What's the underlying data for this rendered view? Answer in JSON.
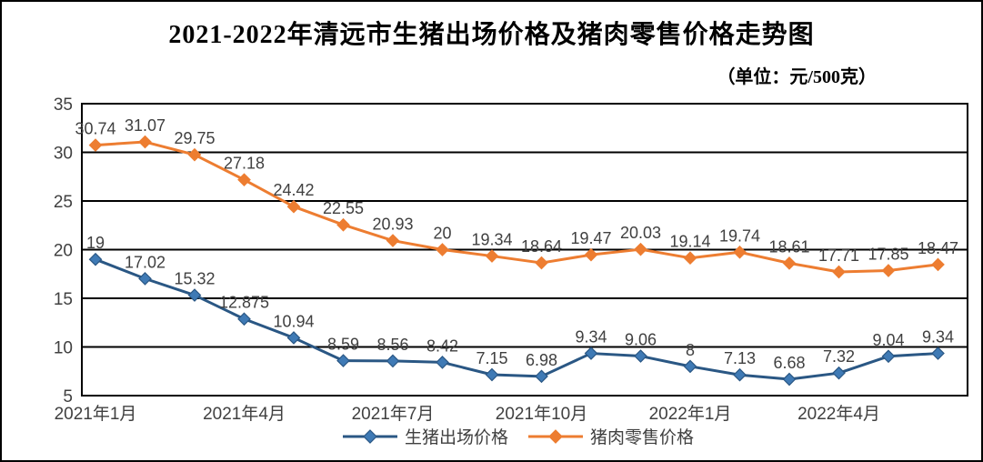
{
  "title": "2021-2022年清远市生猪出场价格及猪肉零售价格走势图",
  "unit_label": "（单位：元/500克）",
  "chart_data": {
    "type": "line",
    "n_points": 18,
    "x_tick_labels": [
      "2021年1月",
      "2021年4月",
      "2021年7月",
      "2021年10月",
      "2022年1月",
      "2022年4月"
    ],
    "x_tick_every": 3,
    "y_ticks": [
      5,
      10,
      15,
      20,
      25,
      30,
      35
    ],
    "ylim": [
      5,
      35
    ],
    "grid": "horizontal-black",
    "legend_position": "bottom-center",
    "series": [
      {
        "name": "生猪出场价格",
        "line_color": "#2a5784",
        "marker_color": "#3f7ab5",
        "marker": "diamond",
        "values": [
          19,
          17.02,
          15.32,
          12.875,
          10.94,
          8.59,
          8.56,
          8.42,
          7.15,
          6.98,
          9.34,
          9.06,
          8,
          7.13,
          6.68,
          7.32,
          9.04,
          9.34
        ],
        "labels": [
          "19",
          "17.02",
          "15.32",
          "12.875",
          "10.94",
          "8.59",
          "8.56",
          "8.42",
          "7.15",
          "6.98",
          "9.34",
          "9.06",
          "8",
          "7.13",
          "6.68",
          "7.32",
          "9.04",
          "9.34"
        ]
      },
      {
        "name": "猪肉零售价格",
        "line_color": "#ED7D31",
        "marker_color": "#ED7D31",
        "marker": "diamond",
        "values": [
          30.74,
          31.07,
          29.75,
          27.18,
          24.42,
          22.55,
          20.93,
          20,
          19.34,
          18.64,
          19.47,
          20.03,
          19.14,
          19.74,
          18.61,
          17.71,
          17.85,
          18.47
        ],
        "labels": [
          "30.74",
          "31.07",
          "29.75",
          "27.18",
          "24.42",
          "22.55",
          "20.93",
          "20",
          "19.34",
          "18.64",
          "19.47",
          "20.03",
          "19.14",
          "19.74",
          "18.61",
          "17.71",
          "17.85",
          "18.47"
        ]
      }
    ],
    "label_color": "#404040",
    "axis_label_color": "#404040",
    "gridline_color": "#000000"
  }
}
